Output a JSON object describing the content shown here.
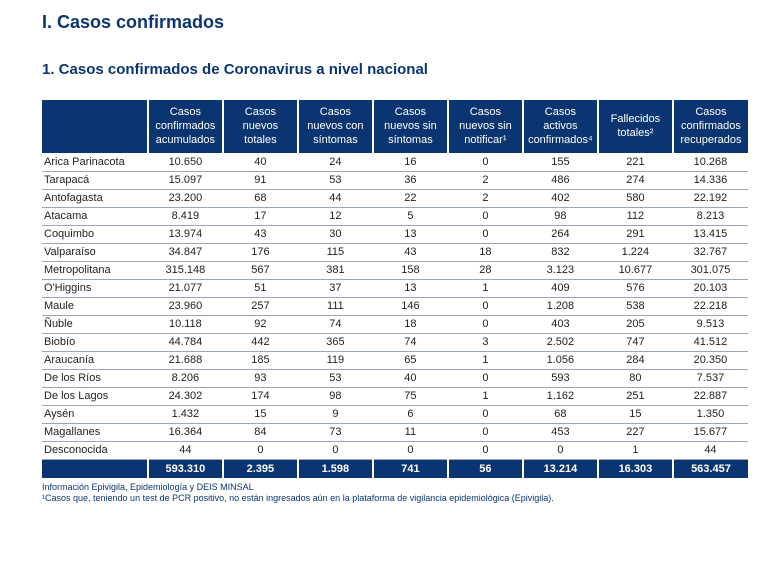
{
  "title_main": "I. Casos confirmados",
  "title_sub": "1. Casos confirmados de Coronavirus a nivel nacional",
  "colors": {
    "header_bg": "#0b3571",
    "header_fg": "#ffffff",
    "text": "#222222",
    "border": "#9aa7b5"
  },
  "table": {
    "columns": [
      "",
      "Casos confirmados acumulados",
      "Casos nuevos totales",
      "Casos nuevos con síntomas",
      "Casos nuevos sin síntomas",
      "Casos nuevos sin notificar¹",
      "Casos activos confirmados⁴",
      "Fallecidos totales²",
      "Casos confirmados recuperados"
    ],
    "rows": [
      [
        "Arica Parinacota",
        "10.650",
        "40",
        "24",
        "16",
        "0",
        "155",
        "221",
        "10.268"
      ],
      [
        "Tarapacá",
        "15.097",
        "91",
        "53",
        "36",
        "2",
        "486",
        "274",
        "14.336"
      ],
      [
        "Antofagasta",
        "23.200",
        "68",
        "44",
        "22",
        "2",
        "402",
        "580",
        "22.192"
      ],
      [
        "Atacama",
        "8.419",
        "17",
        "12",
        "5",
        "0",
        "98",
        "112",
        "8.213"
      ],
      [
        "Coquimbo",
        "13.974",
        "43",
        "30",
        "13",
        "0",
        "264",
        "291",
        "13.415"
      ],
      [
        "Valparaíso",
        "34.847",
        "176",
        "115",
        "43",
        "18",
        "832",
        "1.224",
        "32.767"
      ],
      [
        "Metropolitana",
        "315.148",
        "567",
        "381",
        "158",
        "28",
        "3.123",
        "10.677",
        "301.075"
      ],
      [
        "O'Higgins",
        "21.077",
        "51",
        "37",
        "13",
        "1",
        "409",
        "576",
        "20.103"
      ],
      [
        "Maule",
        "23.960",
        "257",
        "111",
        "146",
        "0",
        "1.208",
        "538",
        "22.218"
      ],
      [
        "Ñuble",
        "10.118",
        "92",
        "74",
        "18",
        "0",
        "403",
        "205",
        "9.513"
      ],
      [
        "Biobío",
        "44.784",
        "442",
        "365",
        "74",
        "3",
        "2.502",
        "747",
        "41.512"
      ],
      [
        "Araucanía",
        "21.688",
        "185",
        "119",
        "65",
        "1",
        "1.056",
        "284",
        "20.350"
      ],
      [
        "De los Ríos",
        "8.206",
        "93",
        "53",
        "40",
        "0",
        "593",
        "80",
        "7.537"
      ],
      [
        "De los Lagos",
        "24.302",
        "174",
        "98",
        "75",
        "1",
        "1.162",
        "251",
        "22.887"
      ],
      [
        "Aysén",
        "1.432",
        "15",
        "9",
        "6",
        "0",
        "68",
        "15",
        "1.350"
      ],
      [
        "Magallanes",
        "16.364",
        "84",
        "73",
        "11",
        "0",
        "453",
        "227",
        "15.677"
      ],
      [
        "Desconocida",
        "44",
        "0",
        "0",
        "0",
        "0",
        "0",
        "1",
        "44"
      ]
    ],
    "totals": [
      "",
      "593.310",
      "2.395",
      "1.598",
      "741",
      "56",
      "13.214",
      "16.303",
      "563.457"
    ]
  },
  "footnotes": [
    "Información Epivigila, Epidemiología y DEIS MINSAL",
    "¹Casos que, teniendo un test de PCR positivo, no están ingresados aún en la plataforma de vigilancia epidemiológica (Epivigila)."
  ]
}
